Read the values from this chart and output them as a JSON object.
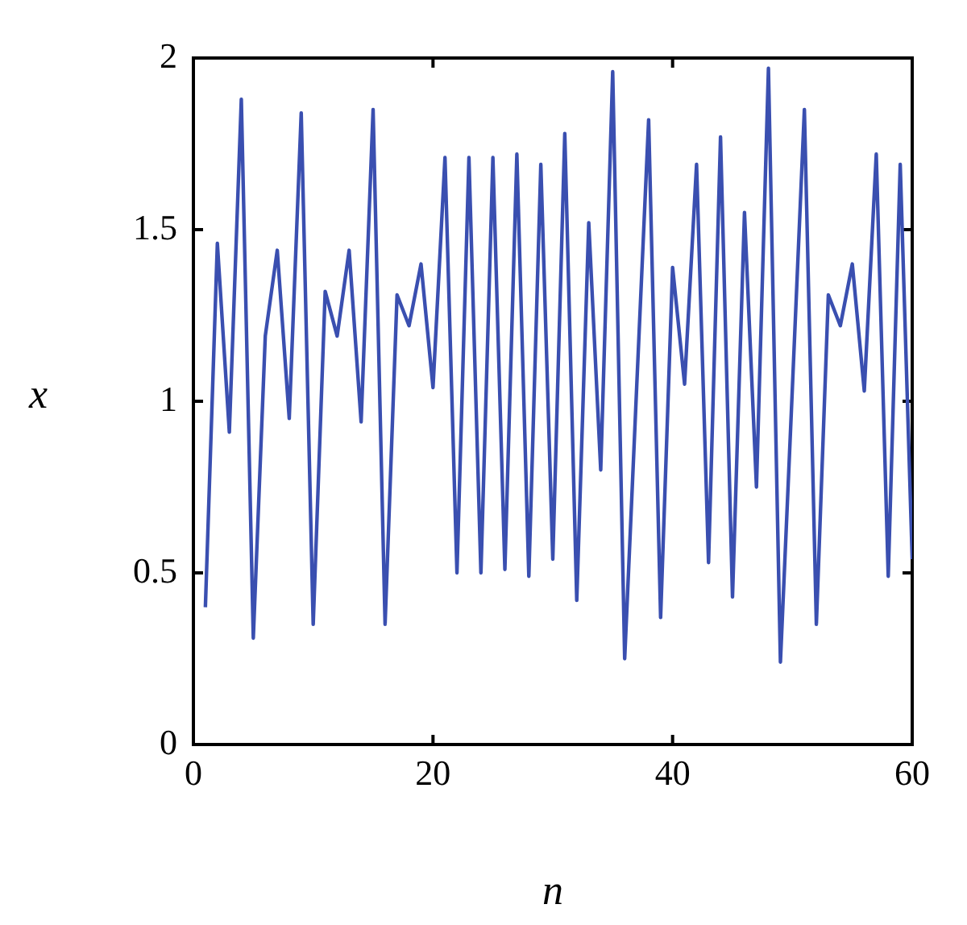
{
  "chart_data": {
    "type": "line",
    "xlabel": "n",
    "ylabel": "x",
    "xlim": [
      0,
      60
    ],
    "xticks": [
      0,
      20,
      40,
      60
    ],
    "ylim": [
      0,
      2
    ],
    "yticks": [
      0,
      0.5,
      1,
      1.5,
      2
    ],
    "grid": false,
    "legend": false,
    "marker": "none",
    "line_style": "solid",
    "x": [
      1,
      2,
      3,
      4,
      5,
      6,
      7,
      8,
      9,
      10,
      11,
      12,
      13,
      14,
      15,
      16,
      17,
      18,
      19,
      20,
      21,
      22,
      23,
      24,
      25,
      26,
      27,
      28,
      29,
      30,
      31,
      32,
      33,
      34,
      35,
      36,
      37,
      38,
      39,
      40,
      41,
      42,
      43,
      44,
      45,
      46,
      47,
      48,
      49,
      50,
      51,
      52,
      53,
      54,
      55,
      56,
      57,
      58,
      59,
      60
    ],
    "series": [
      {
        "color": "#3a4fb0",
        "values": [
          0.4,
          1.46,
          0.91,
          1.88,
          0.31,
          1.19,
          1.44,
          0.95,
          1.84,
          0.35,
          1.32,
          1.19,
          1.44,
          0.94,
          1.85,
          0.35,
          1.31,
          1.22,
          1.4,
          1.04,
          1.71,
          0.5,
          1.71,
          0.5,
          1.71,
          0.51,
          1.72,
          0.49,
          1.69,
          0.54,
          1.78,
          0.42,
          1.52,
          0.8,
          1.96,
          0.25,
          1.04,
          1.82,
          0.37,
          1.39,
          1.05,
          1.69,
          0.53,
          1.77,
          0.43,
          1.55,
          0.75,
          1.97,
          0.24,
          1.04,
          1.85,
          0.35,
          1.31,
          1.22,
          1.4,
          1.03,
          1.72,
          0.49,
          1.69,
          0.54
        ]
      }
    ]
  }
}
